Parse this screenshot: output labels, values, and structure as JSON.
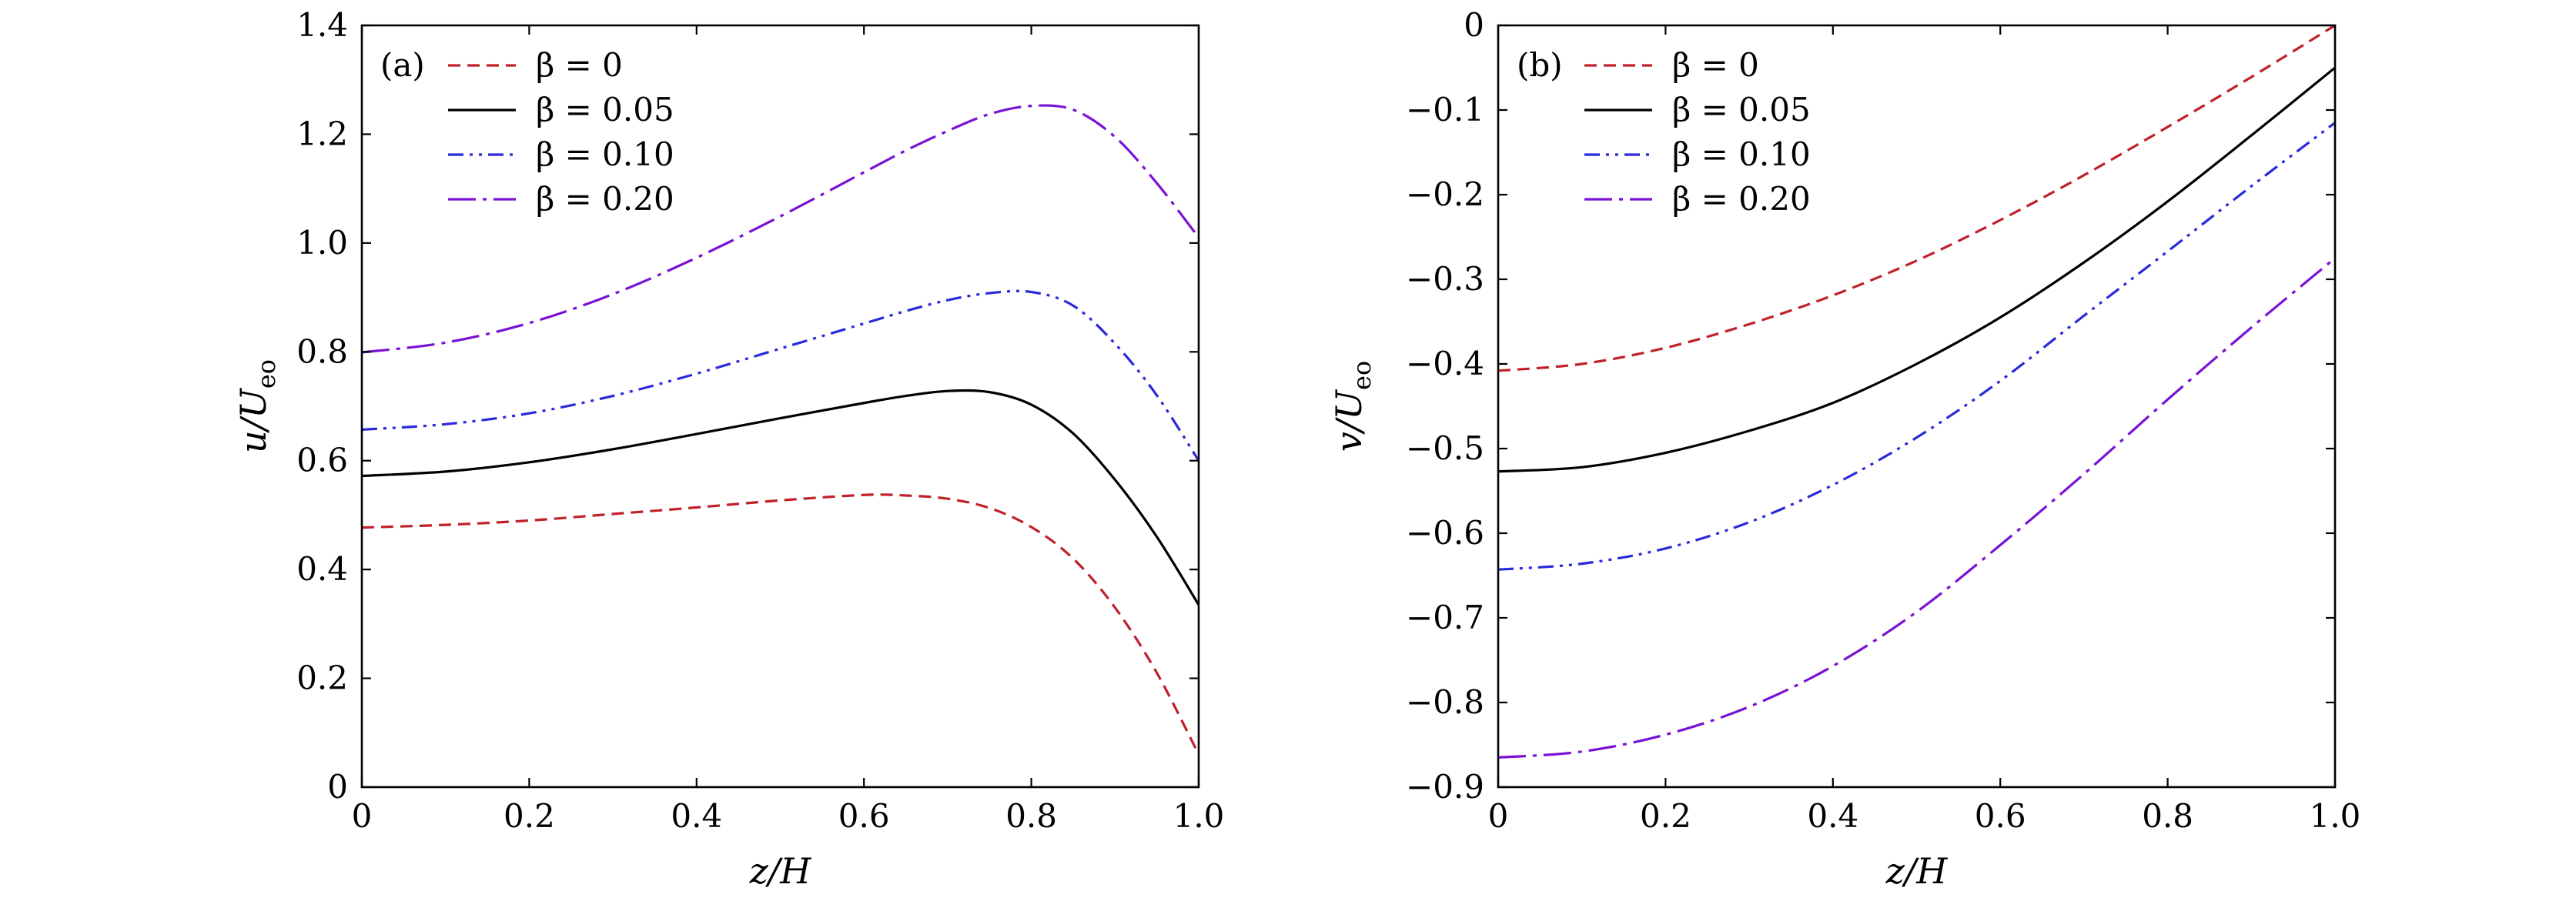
{
  "chart_data": [
    {
      "type": "line",
      "panel": "(a)",
      "xlabel": "z/H",
      "ylabel": "u/U",
      "ylabel_sub": "eo",
      "xlim": [
        0,
        1
      ],
      "ylim": [
        0,
        1.4
      ],
      "x_ticks": [
        0,
        0.2,
        0.4,
        0.6,
        0.8,
        1.0
      ],
      "x_tick_labels": [
        "0",
        "0.2",
        "0.4",
        "0.6",
        "0.8",
        "1.0"
      ],
      "y_ticks": [
        0,
        0.2,
        0.4,
        0.6,
        0.8,
        1.0,
        1.2,
        1.4
      ],
      "y_tick_labels": [
        "0",
        "0.2",
        "0.4",
        "0.6",
        "0.8",
        "1.0",
        "1.2",
        "1.4"
      ],
      "legend_position": "top-left",
      "grid": false,
      "x": [
        0,
        0.1,
        0.2,
        0.3,
        0.4,
        0.5,
        0.6,
        0.65,
        0.7,
        0.75,
        0.8,
        0.85,
        0.9,
        0.95,
        1.0
      ],
      "series": [
        {
          "name": "β = 0",
          "color": "#c0202a",
          "dash": "dashed",
          "values": [
            0.477,
            0.482,
            0.49,
            0.502,
            0.514,
            0.527,
            0.537,
            0.536,
            0.53,
            0.513,
            0.478,
            0.42,
            0.33,
            0.21,
            0.06
          ]
        },
        {
          "name": "β = 0.05",
          "color": "#000000",
          "dash": "solid",
          "values": [
            0.572,
            0.58,
            0.597,
            0.621,
            0.649,
            0.678,
            0.706,
            0.719,
            0.728,
            0.726,
            0.703,
            0.65,
            0.565,
            0.46,
            0.335
          ]
        },
        {
          "name": "β = 0.10",
          "color": "#2a2adb",
          "dash": "dash-dot-dot",
          "values": [
            0.657,
            0.667,
            0.687,
            0.719,
            0.76,
            0.806,
            0.852,
            0.875,
            0.895,
            0.908,
            0.91,
            0.885,
            0.815,
            0.72,
            0.6
          ]
        },
        {
          "name": "β = 0.20",
          "color": "#7a12d6",
          "dash": "long-dash-dot",
          "values": [
            0.799,
            0.817,
            0.853,
            0.906,
            0.973,
            1.049,
            1.13,
            1.17,
            1.206,
            1.237,
            1.252,
            1.245,
            1.195,
            1.11,
            1.01
          ]
        }
      ]
    },
    {
      "type": "line",
      "panel": "(b)",
      "xlabel": "z/H",
      "ylabel": "v/U",
      "ylabel_sub": "eo",
      "xlim": [
        0,
        1
      ],
      "ylim": [
        -0.9,
        0
      ],
      "x_ticks": [
        0,
        0.2,
        0.4,
        0.6,
        0.8,
        1.0
      ],
      "x_tick_labels": [
        "0",
        "0.2",
        "0.4",
        "0.6",
        "0.8",
        "1.0"
      ],
      "y_ticks": [
        0,
        -0.1,
        -0.2,
        -0.3,
        -0.4,
        -0.5,
        -0.6,
        -0.7,
        -0.8,
        -0.9
      ],
      "y_tick_labels": [
        "0",
        "−0.1",
        "−0.2",
        "−0.3",
        "−0.4",
        "−0.5",
        "−0.6",
        "−0.7",
        "−0.8",
        "−0.9"
      ],
      "legend_position": "top-left",
      "grid": false,
      "x": [
        0,
        0.1,
        0.2,
        0.3,
        0.4,
        0.5,
        0.6,
        0.7,
        0.8,
        0.9,
        1.0
      ],
      "series": [
        {
          "name": "β = 0",
          "color": "#c0202a",
          "dash": "dashed",
          "values": [
            -0.408,
            -0.4,
            -0.381,
            -0.353,
            -0.319,
            -0.278,
            -0.23,
            -0.177,
            -0.12,
            -0.061,
            0.0
          ]
        },
        {
          "name": "β = 0.05",
          "color": "#000000",
          "dash": "solid",
          "values": [
            -0.527,
            -0.522,
            -0.505,
            -0.479,
            -0.446,
            -0.4,
            -0.345,
            -0.28,
            -0.208,
            -0.13,
            -0.05
          ]
        },
        {
          "name": "β = 0.10",
          "color": "#2a2adb",
          "dash": "dash-dot-dot",
          "values": [
            -0.643,
            -0.636,
            -0.618,
            -0.587,
            -0.543,
            -0.487,
            -0.42,
            -0.343,
            -0.267,
            -0.19,
            -0.115
          ]
        },
        {
          "name": "β = 0.20",
          "color": "#7a12d6",
          "dash": "long-dash-dot",
          "values": [
            -0.865,
            -0.858,
            -0.838,
            -0.805,
            -0.757,
            -0.693,
            -0.614,
            -0.53,
            -0.442,
            -0.357,
            -0.275
          ]
        }
      ]
    }
  ]
}
